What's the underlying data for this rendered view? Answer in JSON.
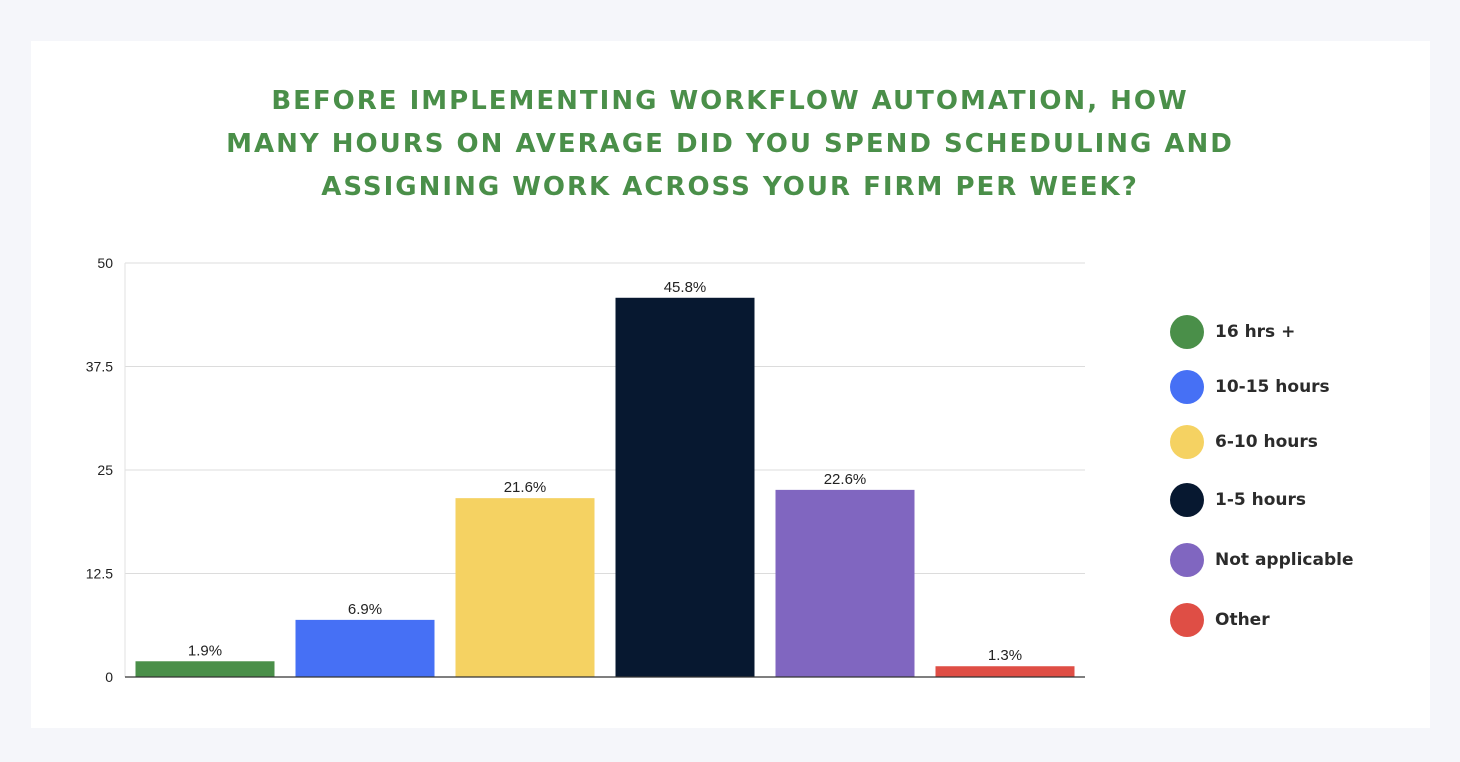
{
  "chart_data": {
    "type": "bar",
    "title_lines": [
      "BEFORE IMPLEMENTING WORKFLOW AUTOMATION, HOW",
      "MANY HOURS ON AVERAGE DID YOU SPEND SCHEDULING AND",
      "ASSIGNING WORK ACROSS YOUR FIRM PER WEEK?"
    ],
    "categories": [
      "16 hrs +",
      "10-15 hours",
      "6-10 hours",
      "1-5 hours",
      "Not applicable",
      "Other"
    ],
    "values": [
      1.9,
      6.9,
      21.6,
      45.8,
      22.6,
      1.3
    ],
    "value_labels": [
      "1.9%",
      "6.9%",
      "21.6%",
      "45.8%",
      "22.6%",
      "1.3%"
    ],
    "colors": [
      "#4a8f49",
      "#4670f5",
      "#f5d262",
      "#071830",
      "#8066c0",
      "#df4e45"
    ],
    "ylim": [
      0,
      50
    ],
    "yticks": [
      0,
      12.5,
      25,
      37.5,
      50
    ],
    "ytick_labels": [
      "0",
      "12.5",
      "25",
      "37.5",
      "50"
    ],
    "grid": true,
    "legend_position": "right",
    "xlabel": "",
    "ylabel": ""
  }
}
